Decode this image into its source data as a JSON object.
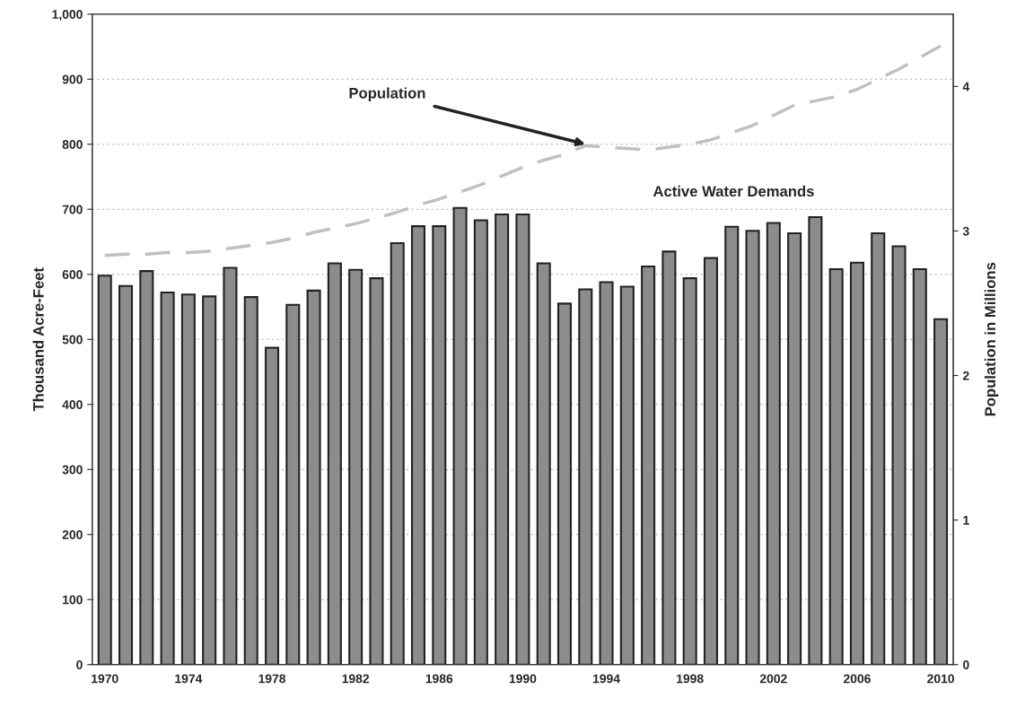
{
  "chart_data": {
    "type": "bar",
    "ylabel": "Thousand Acre-Feet",
    "y2label": "Population in Millions",
    "x": [
      1970,
      1971,
      1972,
      1973,
      1974,
      1975,
      1976,
      1977,
      1978,
      1979,
      1980,
      1981,
      1982,
      1983,
      1984,
      1985,
      1986,
      1987,
      1988,
      1989,
      1990,
      1991,
      1992,
      1993,
      1994,
      1995,
      1996,
      1997,
      1998,
      1999,
      2000,
      2001,
      2002,
      2003,
      2004,
      2005,
      2006,
      2007,
      2008,
      2009,
      2010
    ],
    "series": [
      {
        "color": "#8c8c8c",
        "values": [
          598,
          582,
          605,
          572,
          569,
          566,
          610,
          565,
          487,
          553,
          575,
          617,
          607,
          594,
          648,
          674,
          674,
          702,
          683,
          692,
          692,
          617,
          555,
          577,
          588,
          581,
          612,
          635,
          594,
          625,
          673,
          667,
          679,
          663,
          688,
          608,
          618,
          663,
          643,
          608,
          531
        ]
      },
      {
        "type": "line",
        "axis": "y2",
        "color": "#c0c0c0",
        "line_style": "dashed",
        "values": [
          2.83,
          2.84,
          2.84,
          2.85,
          2.85,
          2.86,
          2.88,
          2.9,
          2.92,
          2.95,
          2.99,
          3.02,
          3.05,
          3.09,
          3.13,
          3.18,
          3.22,
          3.27,
          3.32,
          3.38,
          3.44,
          3.49,
          3.53,
          3.59,
          3.58,
          3.57,
          3.56,
          3.58,
          3.6,
          3.63,
          3.68,
          3.73,
          3.8,
          3.87,
          3.9,
          3.93,
          3.98,
          4.05,
          4.12,
          4.2,
          4.28
        ]
      }
    ],
    "xlim": [
      1969.4,
      2010.6
    ],
    "xticks": [
      1970,
      1974,
      1978,
      1982,
      1986,
      1990,
      1994,
      1998,
      2002,
      2006,
      2010
    ],
    "ylim": [
      0,
      1000
    ],
    "yticks": [
      0,
      100,
      200,
      300,
      400,
      500,
      600,
      700,
      800,
      900,
      {
        "value": 1000,
        "label": "1,000"
      }
    ],
    "y2lim": [
      0,
      4.5
    ],
    "y2ticks": [
      0,
      1,
      2,
      3,
      4
    ],
    "grid": "y",
    "annotations": [
      {
        "text": "Population",
        "x": 1993,
        "y": 800
      },
      "Active Water Demands"
    ]
  }
}
